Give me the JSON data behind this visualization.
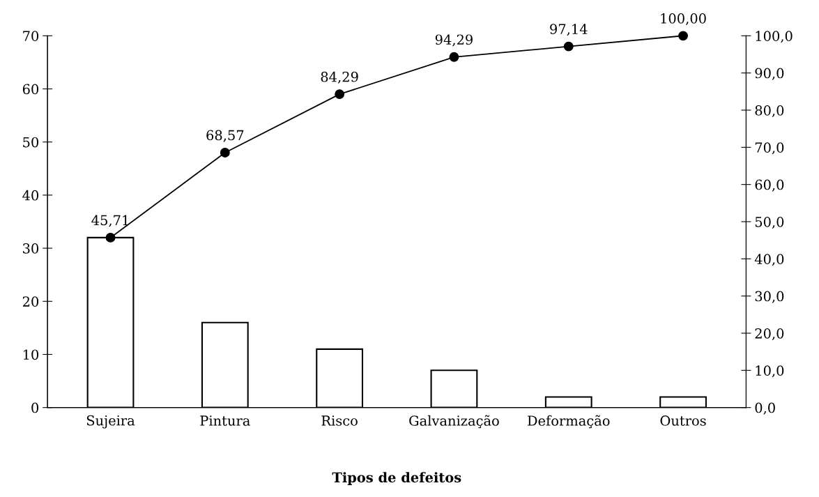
{
  "chart_data": {
    "type": "bar",
    "xlabel": "Tipos de defeitos",
    "categories": [
      "Sujeira",
      "Pintura",
      "Risco",
      "Galvanização",
      "Deformação",
      "Outros"
    ],
    "series": [
      {
        "color": "#ffffff",
        "values": [
          32,
          16,
          11,
          7,
          2,
          2
        ]
      },
      {
        "type": "line",
        "axis": "y2",
        "color": "#000000",
        "marker": "circle",
        "values": [
          45.71,
          68.57,
          84.29,
          94.29,
          97.14,
          100.0
        ],
        "value_labels": [
          "45,71",
          "68,57",
          "84,29",
          "94,29",
          "97,14",
          "100,00"
        ]
      }
    ],
    "ylim": [
      0,
      70
    ],
    "yticks": [
      0,
      10,
      20,
      30,
      40,
      50,
      60,
      70
    ],
    "y2lim": [
      0,
      100
    ],
    "y2ticks": [
      {
        "value": 0,
        "label": "0,0"
      },
      {
        "value": 10,
        "label": "10,0"
      },
      {
        "value": 20,
        "label": "20,0"
      },
      {
        "value": 30,
        "label": "30,0"
      },
      {
        "value": 40,
        "label": "40,0"
      },
      {
        "value": 50,
        "label": "50,0"
      },
      {
        "value": 60,
        "label": "60,0"
      },
      {
        "value": 70,
        "label": "70,0"
      },
      {
        "value": 80,
        "label": "80,0"
      },
      {
        "value": 90,
        "label": "90,0"
      },
      {
        "value": 100,
        "label": "100,0"
      }
    ],
    "grid": false
  }
}
